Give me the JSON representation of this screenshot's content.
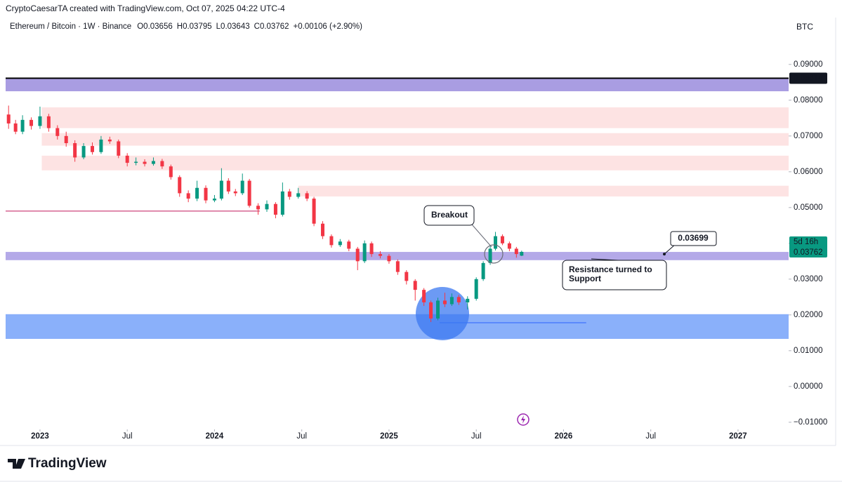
{
  "header": {
    "credit": "CryptoCaesarTA created with TradingView.com, Oct 07, 2025 04:22 UTC-4",
    "logo": "TradingView"
  },
  "chart_data": {
    "type": "candlestick",
    "symbol": "Ethereum / Bitcoin · 1W · Binance",
    "ohlc_letters": [
      "O",
      "H",
      "L",
      "C"
    ],
    "change_label": "+0.00106 (+2.90%)",
    "currency": "BTC",
    "countdown": "5d 16h",
    "up_color": "#089981",
    "down_color": "#f23645",
    "x": [
      2022.82,
      2022.86,
      2022.9,
      2022.95,
      2023.0,
      2023.05,
      2023.1,
      2023.15,
      2023.2,
      2023.25,
      2023.3,
      2023.35,
      2023.4,
      2023.45,
      2023.5,
      2023.55,
      2023.6,
      2023.65,
      2023.7,
      2023.75,
      2023.8,
      2023.85,
      2023.9,
      2023.95,
      2024.0,
      2024.04,
      2024.08,
      2024.12,
      2024.16,
      2024.2,
      2024.25,
      2024.3,
      2024.35,
      2024.39,
      2024.43,
      2024.48,
      2024.53,
      2024.57,
      2024.62,
      2024.67,
      2024.72,
      2024.77,
      2024.82,
      2024.86,
      2024.9,
      2024.95,
      2025.0,
      2025.05,
      2025.1,
      2025.15,
      2025.2,
      2025.24,
      2025.28,
      2025.32,
      2025.36,
      2025.4,
      2025.45,
      2025.5,
      2025.54,
      2025.58,
      2025.61,
      2025.65,
      2025.69,
      2025.73,
      2025.76
    ],
    "open": [
      0.076,
      0.0735,
      0.0712,
      0.0745,
      0.0728,
      0.0755,
      0.0722,
      0.07,
      0.068,
      0.064,
      0.0672,
      0.0655,
      0.069,
      0.0685,
      0.0645,
      0.0625,
      0.0628,
      0.0622,
      0.063,
      0.0615,
      0.0585,
      0.054,
      0.0525,
      0.0555,
      0.052,
      0.0525,
      0.0575,
      0.0545,
      0.054,
      0.0575,
      0.0505,
      0.0495,
      0.051,
      0.048,
      0.0545,
      0.053,
      0.054,
      0.0525,
      0.0455,
      0.042,
      0.0395,
      0.0405,
      0.0385,
      0.035,
      0.04,
      0.037,
      0.0365,
      0.035,
      0.032,
      0.0295,
      0.027,
      0.0235,
      0.019,
      0.024,
      0.023,
      0.025,
      0.0235,
      0.0245,
      0.03,
      0.0345,
      0.0385,
      0.042,
      0.04,
      0.0385,
      0.03656
    ],
    "high": [
      0.0785,
      0.0745,
      0.0758,
      0.0752,
      0.0782,
      0.0762,
      0.073,
      0.0712,
      0.0688,
      0.068,
      0.0682,
      0.07,
      0.0698,
      0.069,
      0.0652,
      0.064,
      0.0635,
      0.064,
      0.0636,
      0.062,
      0.059,
      0.0548,
      0.0575,
      0.0562,
      0.0535,
      0.061,
      0.0582,
      0.0552,
      0.0595,
      0.058,
      0.0512,
      0.052,
      0.0515,
      0.057,
      0.0552,
      0.0555,
      0.0546,
      0.053,
      0.0462,
      0.0425,
      0.0412,
      0.041,
      0.039,
      0.0408,
      0.0405,
      0.0378,
      0.037,
      0.0355,
      0.0325,
      0.03,
      0.0275,
      0.024,
      0.0248,
      0.0262,
      0.026,
      0.0256,
      0.0252,
      0.0305,
      0.035,
      0.0392,
      0.0432,
      0.0425,
      0.0405,
      0.039,
      0.03795
    ],
    "low": [
      0.072,
      0.0705,
      0.0705,
      0.0718,
      0.072,
      0.0712,
      0.069,
      0.067,
      0.0628,
      0.0635,
      0.0648,
      0.065,
      0.0678,
      0.0638,
      0.0615,
      0.0618,
      0.0615,
      0.0617,
      0.0608,
      0.0578,
      0.053,
      0.0515,
      0.0518,
      0.0512,
      0.0515,
      0.052,
      0.0538,
      0.0532,
      0.0535,
      0.05,
      0.048,
      0.0488,
      0.047,
      0.0475,
      0.0522,
      0.0525,
      0.0518,
      0.0448,
      0.0412,
      0.0388,
      0.039,
      0.0378,
      0.0325,
      0.0345,
      0.0362,
      0.0358,
      0.0343,
      0.0312,
      0.0285,
      0.024,
      0.0225,
      0.018,
      0.0185,
      0.0222,
      0.0225,
      0.0228,
      0.0215,
      0.024,
      0.0295,
      0.034,
      0.038,
      0.0395,
      0.0378,
      0.036,
      0.03643
    ],
    "close": [
      0.0735,
      0.0712,
      0.0745,
      0.0728,
      0.0755,
      0.0722,
      0.07,
      0.068,
      0.064,
      0.0672,
      0.0655,
      0.069,
      0.0685,
      0.0645,
      0.0625,
      0.0628,
      0.0622,
      0.063,
      0.0615,
      0.0585,
      0.054,
      0.0525,
      0.0555,
      0.052,
      0.0525,
      0.0575,
      0.0545,
      0.054,
      0.0575,
      0.0505,
      0.0495,
      0.051,
      0.048,
      0.0545,
      0.053,
      0.054,
      0.0525,
      0.0455,
      0.042,
      0.0395,
      0.0405,
      0.0385,
      0.035,
      0.04,
      0.037,
      0.0365,
      0.035,
      0.032,
      0.0295,
      0.027,
      0.0235,
      0.019,
      0.024,
      0.023,
      0.025,
      0.0235,
      0.0245,
      0.03,
      0.0345,
      0.0385,
      0.042,
      0.04,
      0.0385,
      0.037,
      0.03762
    ],
    "xlim": [
      2022.803,
      2027.29
    ],
    "xticks": [
      2023,
      {
        "value": 2023.5,
        "label": "Jul"
      },
      2024,
      {
        "value": 2024.5,
        "label": "Jul"
      },
      2025,
      {
        "value": 2025.5,
        "label": "Jul"
      },
      2026,
      {
        "value": 2026.5,
        "label": "Jul"
      },
      2027
    ],
    "ylim": [
      -0.0116,
      0.1031
    ],
    "yticks": [
      {
        "value": 0.09,
        "label": "0.09000"
      },
      {
        "value": 0.08,
        "label": "0.08000"
      },
      {
        "value": 0.07,
        "label": "0.07000"
      },
      {
        "value": 0.06,
        "label": "0.06000"
      },
      {
        "value": 0.05,
        "label": "0.05000"
      },
      {
        "value": 0.04,
        "label": "0.04000"
      },
      {
        "value": 0.03,
        "label": "0.03000"
      },
      {
        "value": 0.02,
        "label": "0.02000"
      },
      {
        "value": 0.01,
        "label": "0.01000"
      },
      {
        "value": 0,
        "label": "0.00000"
      },
      {
        "value": -0.01,
        "label": "−0.01000"
      }
    ],
    "zones": [
      {
        "from": 0.0825,
        "to": 0.0863,
        "start": 2022.803,
        "color": "#a99de2"
      },
      {
        "from": 0.0722,
        "to": 0.078,
        "start": 2023.01,
        "color": "#fde3e3"
      },
      {
        "from": 0.0673,
        "to": 0.0708,
        "start": 2023.01,
        "color": "#fde3e3"
      },
      {
        "from": 0.0604,
        "to": 0.0645,
        "start": 2023.01,
        "color": "#fde3e3"
      },
      {
        "from": 0.0531,
        "to": 0.0561,
        "start": 2024.48,
        "color": "#fde3e3"
      },
      {
        "from": 0.0353,
        "to": 0.0376,
        "start": 2022.803,
        "color": "#b4a9e8"
      },
      {
        "from": 0.0133,
        "to": 0.0202,
        "start": 2022.803,
        "color": "#8ab0fa"
      }
    ],
    "lines": [
      {
        "value": 0.08614,
        "start": 2022.803,
        "end": 2027.29,
        "color": "#000000"
      },
      {
        "value": 0.049,
        "start": 2022.803,
        "end": 2024.26,
        "color": "#c2185b"
      },
      {
        "value": 0.0178,
        "start": 2025.29,
        "end": 2026.13,
        "color": "#2962ff"
      }
    ],
    "breakout_label": "Breakout",
    "support_label": [
      "Resistance turned to",
      "Support"
    ],
    "callout_value": 0.03699
  }
}
